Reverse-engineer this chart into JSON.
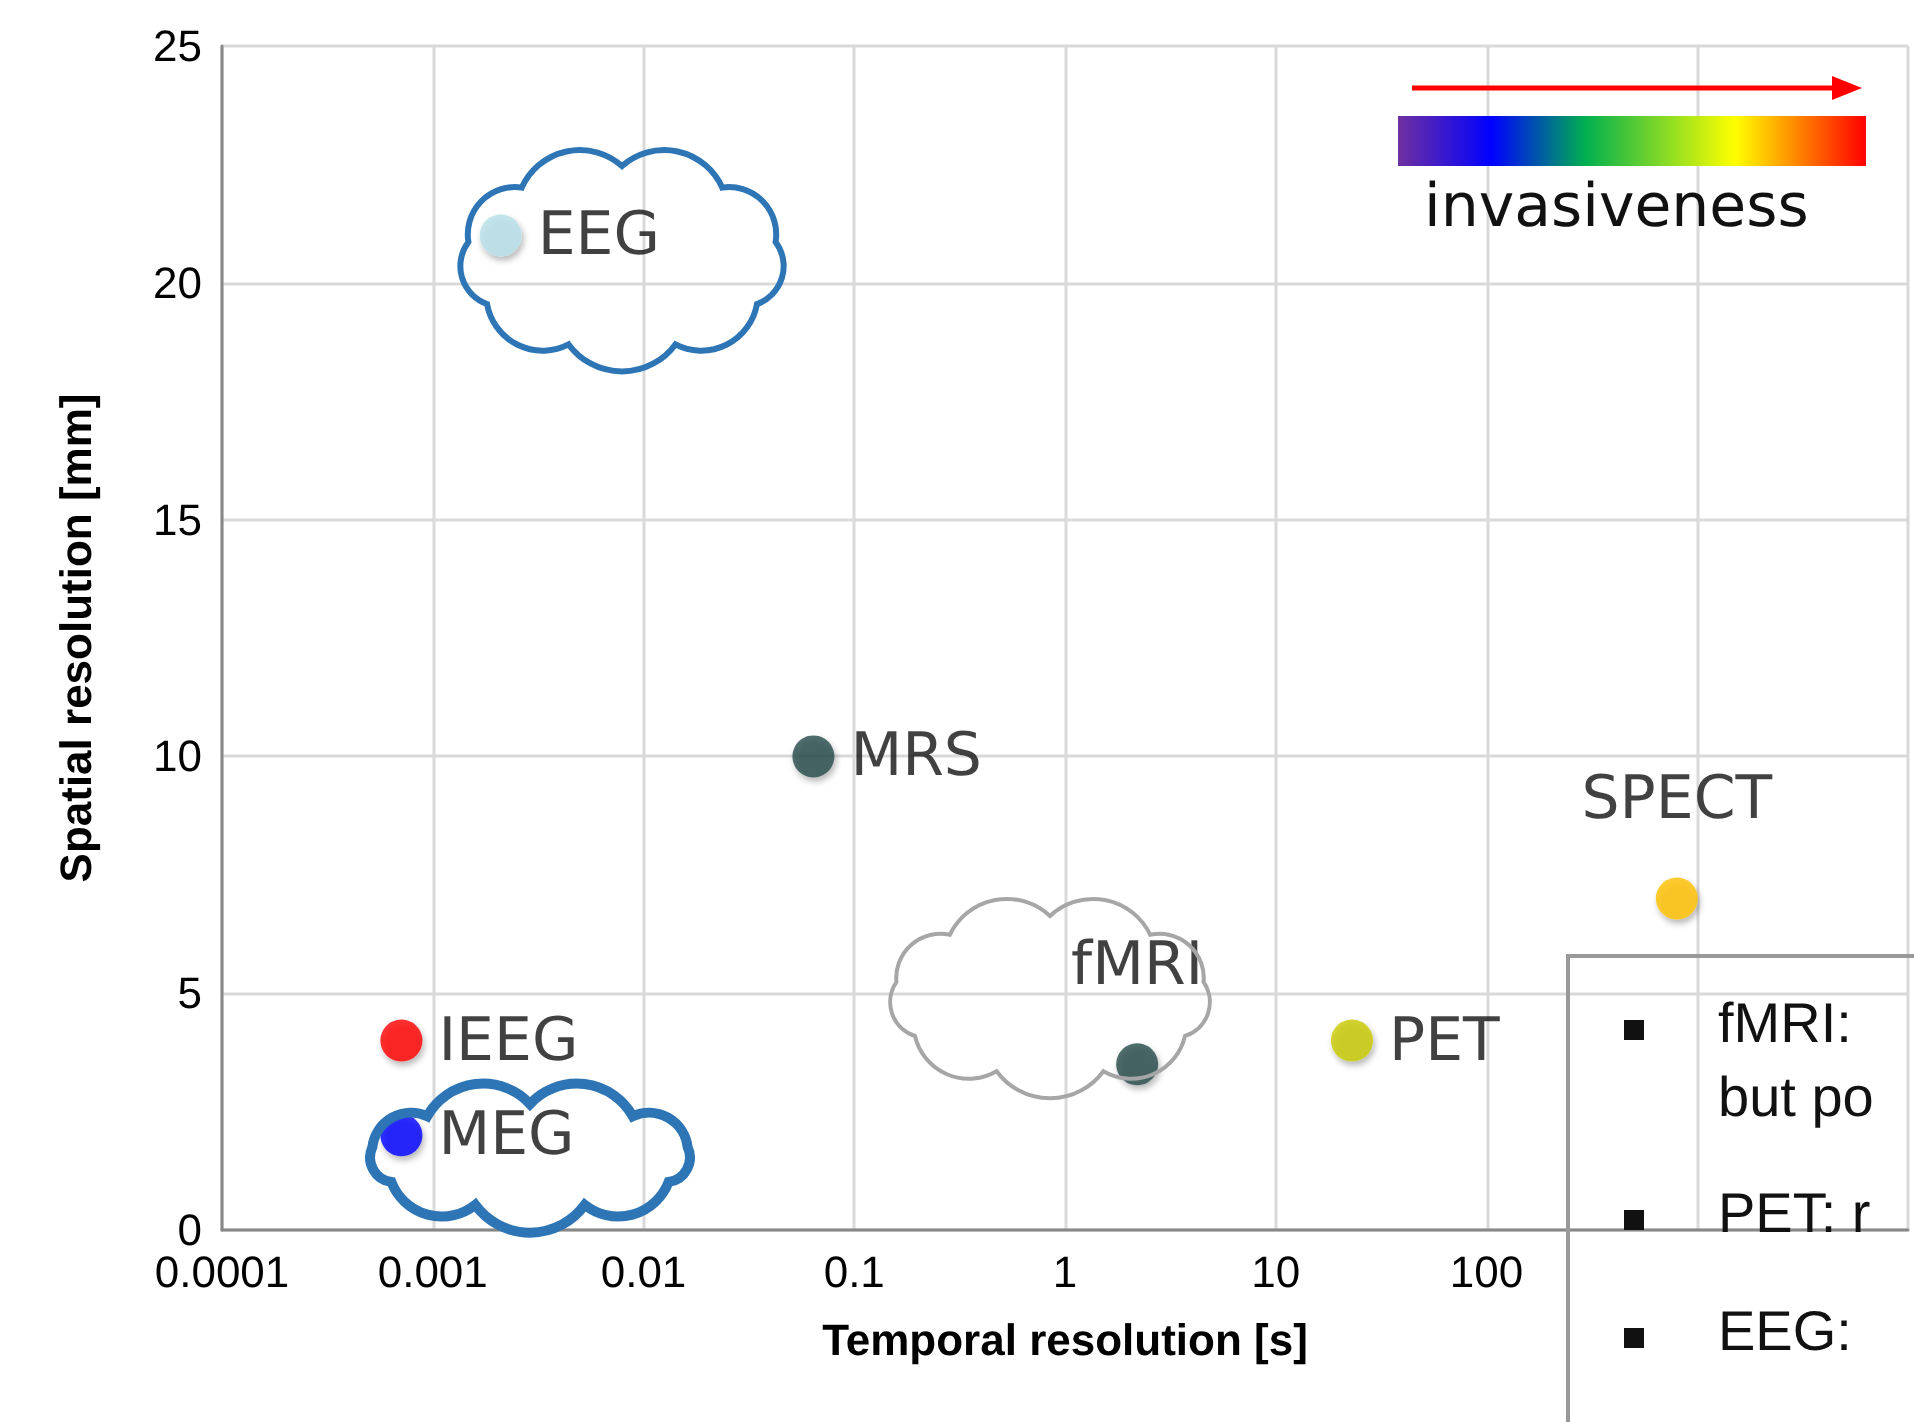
{
  "chart_data": {
    "type": "scatter",
    "xlabel": "Temporal resolution [s]",
    "ylabel": "Spatial resolution [mm]",
    "log": "x",
    "grid": true,
    "marker": "circle",
    "legend": false,
    "xlim": [
      0.0001,
      10000
    ],
    "xticks": [
      0.0001,
      0.001,
      0.01,
      0.1,
      1,
      10,
      100,
      {
        "value": 1000,
        "label": null
      },
      {
        "value": 10000,
        "label": null
      }
    ],
    "ylim": [
      0,
      25
    ],
    "yticks": [
      0,
      5,
      10,
      15,
      20,
      25
    ],
    "series": [
      {
        "name": "EEG",
        "color": "#b7dee8",
        "x": [
          0.0021
        ],
        "values": [
          21
        ]
      },
      {
        "name": "MRS",
        "color": "#254b4b",
        "x": [
          0.064
        ],
        "values": [
          10
        ]
      },
      {
        "name": "IEEG",
        "color": "#ff0000",
        "x": [
          0.00071
        ],
        "values": [
          4
        ]
      },
      {
        "name": "MEG",
        "color": "#0000ff",
        "x": [
          0.00071
        ],
        "values": [
          2
        ]
      },
      {
        "name": "fMRI",
        "color": "#254b4b",
        "x": [
          2.2
        ],
        "values": [
          3.5
        ]
      },
      {
        "name": "PET",
        "color": "#c8c800",
        "x": [
          23
        ],
        "values": [
          4
        ]
      },
      {
        "name": "SPECT",
        "color": "#ffc000",
        "x": [
          800
        ],
        "values": [
          7
        ]
      }
    ],
    "annotations": [
      "invasiveness",
      "fMRI:",
      "but po",
      "PET: r",
      "EEG:"
    ]
  }
}
